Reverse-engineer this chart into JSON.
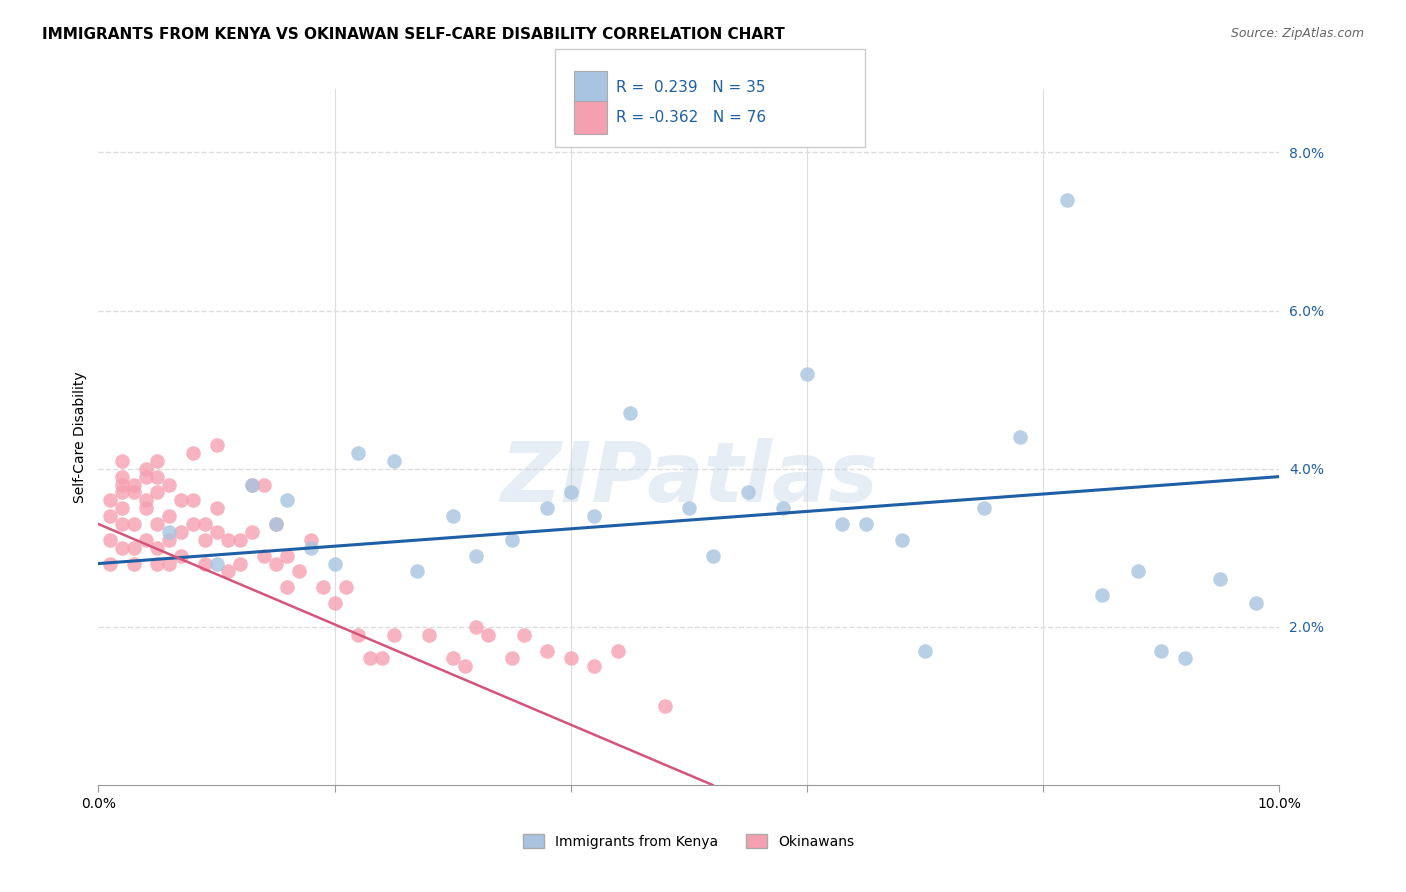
{
  "title": "IMMIGRANTS FROM KENYA VS OKINAWAN SELF-CARE DISABILITY CORRELATION CHART",
  "source": "Source: ZipAtlas.com",
  "ylabel": "Self-Care Disability",
  "legend_blue_r": "R =  0.239",
  "legend_blue_n": "N = 35",
  "legend_pink_r": "R = -0.362",
  "legend_pink_n": "N = 76",
  "legend_label_blue": "Immigrants from Kenya",
  "legend_label_pink": "Okinawans",
  "blue_color": "#a8c4e0",
  "blue_line_color": "#1f5fa6",
  "pink_color": "#f5a0b0",
  "pink_line_color": "#d4547a",
  "xlim": [
    0.0,
    0.1
  ],
  "ylim": [
    0.0,
    0.088
  ],
  "yticks": [
    0.02,
    0.04,
    0.06,
    0.08
  ],
  "ytick_labels": [
    "2.0%",
    "4.0%",
    "6.0%",
    "8.0%"
  ],
  "xticks": [
    0.0,
    0.02,
    0.04,
    0.06,
    0.08,
    0.1
  ],
  "xtick_labels": [
    "0.0%",
    "",
    "",
    "",
    "",
    "10.0%"
  ],
  "blue_scatter_x": [
    0.006,
    0.01,
    0.013,
    0.015,
    0.016,
    0.018,
    0.02,
    0.022,
    0.025,
    0.027,
    0.03,
    0.032,
    0.035,
    0.038,
    0.04,
    0.042,
    0.045,
    0.05,
    0.052,
    0.055,
    0.058,
    0.06,
    0.063,
    0.065,
    0.068,
    0.07,
    0.075,
    0.078,
    0.082,
    0.085,
    0.088,
    0.09,
    0.092,
    0.095,
    0.098
  ],
  "blue_scatter_y": [
    0.032,
    0.028,
    0.038,
    0.033,
    0.036,
    0.03,
    0.028,
    0.042,
    0.041,
    0.027,
    0.034,
    0.029,
    0.031,
    0.035,
    0.037,
    0.034,
    0.047,
    0.035,
    0.029,
    0.037,
    0.035,
    0.052,
    0.033,
    0.033,
    0.031,
    0.017,
    0.035,
    0.044,
    0.074,
    0.024,
    0.027,
    0.017,
    0.016,
    0.026,
    0.023
  ],
  "pink_scatter_x": [
    0.001,
    0.001,
    0.001,
    0.001,
    0.002,
    0.002,
    0.002,
    0.002,
    0.002,
    0.002,
    0.002,
    0.003,
    0.003,
    0.003,
    0.003,
    0.003,
    0.004,
    0.004,
    0.004,
    0.004,
    0.004,
    0.005,
    0.005,
    0.005,
    0.005,
    0.005,
    0.005,
    0.006,
    0.006,
    0.006,
    0.006,
    0.007,
    0.007,
    0.007,
    0.008,
    0.008,
    0.008,
    0.009,
    0.009,
    0.009,
    0.01,
    0.01,
    0.01,
    0.011,
    0.011,
    0.012,
    0.012,
    0.013,
    0.013,
    0.014,
    0.014,
    0.015,
    0.015,
    0.016,
    0.016,
    0.017,
    0.018,
    0.019,
    0.02,
    0.021,
    0.022,
    0.023,
    0.024,
    0.025,
    0.028,
    0.03,
    0.031,
    0.032,
    0.033,
    0.035,
    0.036,
    0.038,
    0.04,
    0.042,
    0.044,
    0.048
  ],
  "pink_scatter_y": [
    0.034,
    0.036,
    0.031,
    0.028,
    0.035,
    0.038,
    0.033,
    0.03,
    0.039,
    0.041,
    0.037,
    0.037,
    0.033,
    0.03,
    0.028,
    0.038,
    0.04,
    0.035,
    0.039,
    0.031,
    0.036,
    0.041,
    0.039,
    0.037,
    0.033,
    0.03,
    0.028,
    0.038,
    0.034,
    0.031,
    0.028,
    0.036,
    0.032,
    0.029,
    0.036,
    0.033,
    0.042,
    0.033,
    0.031,
    0.028,
    0.035,
    0.032,
    0.043,
    0.031,
    0.027,
    0.031,
    0.028,
    0.038,
    0.032,
    0.029,
    0.038,
    0.033,
    0.028,
    0.029,
    0.025,
    0.027,
    0.031,
    0.025,
    0.023,
    0.025,
    0.019,
    0.016,
    0.016,
    0.019,
    0.019,
    0.016,
    0.015,
    0.02,
    0.019,
    0.016,
    0.019,
    0.017,
    0.016,
    0.015,
    0.017,
    0.01
  ],
  "blue_line_x0": 0.0,
  "blue_line_x1": 0.1,
  "blue_line_y0": 0.028,
  "blue_line_y1": 0.039,
  "pink_line_x0": 0.0,
  "pink_line_x1": 0.052,
  "pink_line_y0": 0.033,
  "pink_line_y1": 0.0,
  "watermark_text": "ZIPatlas",
  "background_color": "#ffffff",
  "grid_color": "#dddddd"
}
